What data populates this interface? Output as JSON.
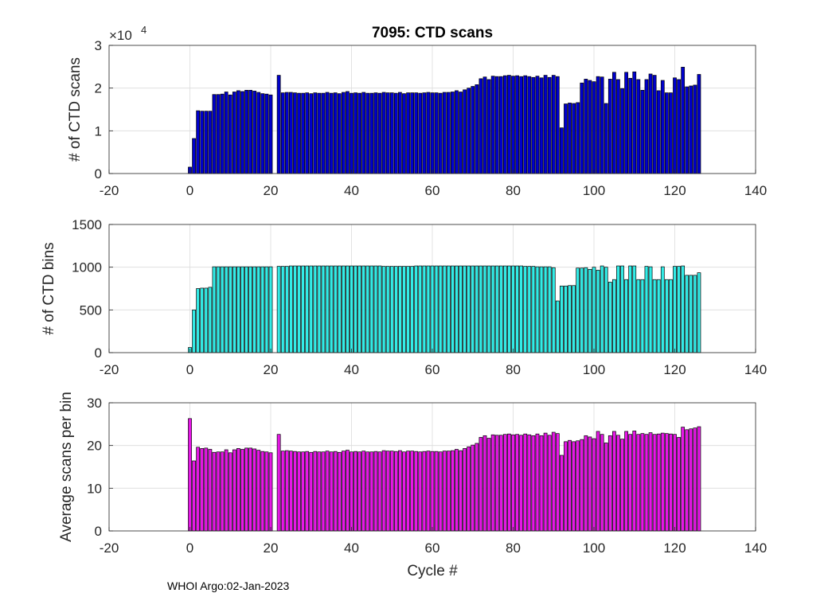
{
  "figure": {
    "title": "7095: CTD scans",
    "footer": "WHOI Argo:02-Jan-2023",
    "xlabel": "Cycle #"
  },
  "chart_data": [
    {
      "type": "bar",
      "name": "ctd-scans",
      "title": "7095: CTD scans",
      "ylabel": "# of CTD scans",
      "exponent_label": "×10",
      "exponent_power": "4",
      "xlim": [
        -20,
        140
      ],
      "ylim": [
        0,
        3
      ],
      "xticks": [
        -20,
        0,
        20,
        40,
        60,
        80,
        100,
        120,
        140
      ],
      "yticks": [
        0,
        1,
        2,
        3
      ],
      "color": "#0000cd",
      "cycles": [
        0,
        1,
        2,
        3,
        4,
        5,
        6,
        7,
        8,
        9,
        10,
        11,
        12,
        13,
        14,
        15,
        16,
        17,
        18,
        19,
        20,
        21,
        22,
        23,
        24,
        25,
        26,
        27,
        28,
        29,
        30,
        31,
        32,
        33,
        34,
        35,
        36,
        37,
        38,
        39,
        40,
        41,
        42,
        43,
        44,
        45,
        46,
        47,
        48,
        49,
        50,
        51,
        52,
        53,
        54,
        55,
        56,
        57,
        58,
        59,
        60,
        61,
        62,
        63,
        64,
        65,
        66,
        67,
        68,
        69,
        70,
        71,
        72,
        73,
        74,
        75,
        76,
        77,
        78,
        79,
        80,
        81,
        82,
        83,
        84,
        85,
        86,
        87,
        88,
        89,
        90,
        91,
        92,
        93,
        94,
        95,
        96,
        97,
        98,
        99,
        100,
        101,
        102,
        103,
        104,
        105,
        106,
        107,
        108,
        109,
        110,
        111,
        112,
        113,
        114,
        115,
        116,
        117,
        118,
        119,
        120,
        121,
        122,
        123,
        124,
        125,
        126
      ],
      "values": [
        0.15,
        0.82,
        1.47,
        1.46,
        1.46,
        1.46,
        1.85,
        1.85,
        1.86,
        1.91,
        1.84,
        1.91,
        1.94,
        1.92,
        1.95,
        1.95,
        1.93,
        1.9,
        1.87,
        1.86,
        1.84,
        null,
        2.3,
        1.89,
        1.9,
        1.9,
        1.89,
        1.88,
        1.88,
        1.89,
        1.87,
        1.89,
        1.88,
        1.88,
        1.9,
        1.88,
        1.89,
        1.87,
        1.9,
        1.92,
        1.88,
        1.89,
        1.88,
        1.9,
        1.88,
        1.88,
        1.89,
        1.88,
        1.9,
        1.89,
        1.89,
        1.88,
        1.9,
        1.87,
        1.89,
        1.89,
        1.89,
        1.88,
        1.89,
        1.9,
        1.89,
        1.89,
        1.88,
        1.9,
        1.9,
        1.91,
        1.94,
        1.91,
        1.96,
        2.0,
        2.04,
        2.08,
        2.22,
        2.26,
        2.2,
        2.28,
        2.27,
        2.27,
        2.29,
        2.3,
        2.28,
        2.29,
        2.27,
        2.29,
        2.27,
        2.25,
        2.28,
        2.24,
        2.3,
        2.25,
        2.3,
        2.27,
        1.07,
        1.63,
        1.65,
        1.64,
        1.66,
        2.12,
        2.21,
        2.18,
        2.15,
        2.27,
        2.26,
        1.64,
        2.21,
        2.37,
        2.2,
        1.99,
        2.37,
        2.23,
        2.38,
        2.2,
        1.95,
        2.2,
        2.33,
        2.3,
        1.94,
        2.18,
        1.89,
        1.89,
        2.24,
        2.2,
        2.49,
        2.03,
        2.05,
        2.07,
        2.32
      ]
    },
    {
      "type": "bar",
      "name": "ctd-bins",
      "ylabel": "# of CTD bins",
      "xlim": [
        -20,
        140
      ],
      "ylim": [
        0,
        1500
      ],
      "xticks": [
        -20,
        0,
        20,
        40,
        60,
        80,
        100,
        120,
        140
      ],
      "yticks": [
        0,
        500,
        1000,
        1500
      ],
      "color": "#33ebe6",
      "cycles": [
        0,
        1,
        2,
        3,
        4,
        5,
        6,
        7,
        8,
        9,
        10,
        11,
        12,
        13,
        14,
        15,
        16,
        17,
        18,
        19,
        20,
        21,
        22,
        23,
        24,
        25,
        26,
        27,
        28,
        29,
        30,
        31,
        32,
        33,
        34,
        35,
        36,
        37,
        38,
        39,
        40,
        41,
        42,
        43,
        44,
        45,
        46,
        47,
        48,
        49,
        50,
        51,
        52,
        53,
        54,
        55,
        56,
        57,
        58,
        59,
        60,
        61,
        62,
        63,
        64,
        65,
        66,
        67,
        68,
        69,
        70,
        71,
        72,
        73,
        74,
        75,
        76,
        77,
        78,
        79,
        80,
        81,
        82,
        83,
        84,
        85,
        86,
        87,
        88,
        89,
        90,
        91,
        92,
        93,
        94,
        95,
        96,
        97,
        98,
        99,
        100,
        101,
        102,
        103,
        104,
        105,
        106,
        107,
        108,
        109,
        110,
        111,
        112,
        113,
        114,
        115,
        116,
        117,
        118,
        119,
        120,
        121,
        122,
        123,
        124,
        125,
        126
      ],
      "values": [
        60,
        500,
        750,
        755,
        755,
        765,
        1005,
        1005,
        1005,
        1005,
        1005,
        1005,
        1005,
        1005,
        1005,
        1005,
        1005,
        1005,
        1005,
        1005,
        1005,
        null,
        1010,
        1010,
        1010,
        1015,
        1015,
        1015,
        1015,
        1015,
        1015,
        1015,
        1015,
        1015,
        1015,
        1015,
        1015,
        1015,
        1015,
        1015,
        1015,
        1015,
        1015,
        1015,
        1015,
        1015,
        1015,
        1015,
        1010,
        1010,
        1010,
        1010,
        1010,
        1010,
        1010,
        1010,
        1015,
        1015,
        1015,
        1015,
        1015,
        1015,
        1015,
        1015,
        1015,
        1015,
        1015,
        1015,
        1015,
        1015,
        1015,
        1015,
        1015,
        1015,
        1015,
        1015,
        1015,
        1015,
        1015,
        1015,
        1015,
        1015,
        1015,
        1010,
        1010,
        1010,
        1005,
        1005,
        1005,
        1005,
        995,
        605,
        780,
        780,
        785,
        785,
        990,
        990,
        995,
        975,
        1000,
        965,
        1015,
        1000,
        825,
        855,
        1015,
        1015,
        855,
        1015,
        1015,
        855,
        855,
        1010,
        1005,
        855,
        855,
        1005,
        855,
        855,
        1010,
        1010,
        1015,
        905,
        905,
        905,
        935
      ]
    },
    {
      "type": "bar",
      "name": "scans-per-bin",
      "ylabel": "Average scans per bin",
      "xlim": [
        -20,
        140
      ],
      "ylim": [
        0,
        30
      ],
      "xticks": [
        -20,
        0,
        20,
        40,
        60,
        80,
        100,
        120,
        140
      ],
      "yticks": [
        0,
        10,
        20,
        30
      ],
      "color": "#e617e6",
      "cycles": [
        0,
        1,
        2,
        3,
        4,
        5,
        6,
        7,
        8,
        9,
        10,
        11,
        12,
        13,
        14,
        15,
        16,
        17,
        18,
        19,
        20,
        21,
        22,
        23,
        24,
        25,
        26,
        27,
        28,
        29,
        30,
        31,
        32,
        33,
        34,
        35,
        36,
        37,
        38,
        39,
        40,
        41,
        42,
        43,
        44,
        45,
        46,
        47,
        48,
        49,
        50,
        51,
        52,
        53,
        54,
        55,
        56,
        57,
        58,
        59,
        60,
        61,
        62,
        63,
        64,
        65,
        66,
        67,
        68,
        69,
        70,
        71,
        72,
        73,
        74,
        75,
        76,
        77,
        78,
        79,
        80,
        81,
        82,
        83,
        84,
        85,
        86,
        87,
        88,
        89,
        90,
        91,
        92,
        93,
        94,
        95,
        96,
        97,
        98,
        99,
        100,
        101,
        102,
        103,
        104,
        105,
        106,
        107,
        108,
        109,
        110,
        111,
        112,
        113,
        114,
        115,
        116,
        117,
        118,
        119,
        120,
        121,
        122,
        123,
        124,
        125,
        126
      ],
      "values": [
        26.3,
        16.4,
        19.6,
        19.3,
        19.4,
        19.1,
        18.4,
        18.5,
        18.5,
        19.0,
        18.3,
        19.0,
        19.3,
        19.1,
        19.4,
        19.4,
        19.2,
        18.9,
        18.6,
        18.5,
        18.3,
        null,
        22.6,
        18.7,
        18.8,
        18.7,
        18.6,
        18.5,
        18.5,
        18.6,
        18.4,
        18.6,
        18.5,
        18.5,
        18.7,
        18.5,
        18.6,
        18.4,
        18.7,
        18.9,
        18.5,
        18.6,
        18.5,
        18.7,
        18.5,
        18.5,
        18.6,
        18.5,
        18.8,
        18.7,
        18.7,
        18.6,
        18.8,
        18.5,
        18.7,
        18.7,
        18.6,
        18.5,
        18.6,
        18.7,
        18.6,
        18.6,
        18.5,
        18.7,
        18.7,
        18.8,
        19.1,
        18.8,
        19.3,
        19.7,
        20.1,
        20.5,
        21.9,
        22.3,
        21.7,
        22.5,
        22.4,
        22.4,
        22.6,
        22.7,
        22.5,
        22.6,
        22.4,
        22.7,
        22.5,
        22.3,
        22.7,
        22.3,
        22.9,
        22.4,
        23.1,
        22.8,
        17.7,
        20.9,
        21.2,
        20.9,
        21.1,
        21.4,
        22.3,
        22.0,
        21.6,
        23.3,
        22.6,
        20.6,
        22.3,
        23.3,
        22.4,
        21.5,
        23.3,
        22.6,
        23.4,
        22.6,
        22.8,
        22.6,
        23.0,
        22.6,
        22.7,
        22.9,
        22.8,
        22.7,
        22.6,
        21.9,
        24.3,
        23.7,
        23.9,
        24.1,
        24.4
      ]
    }
  ]
}
